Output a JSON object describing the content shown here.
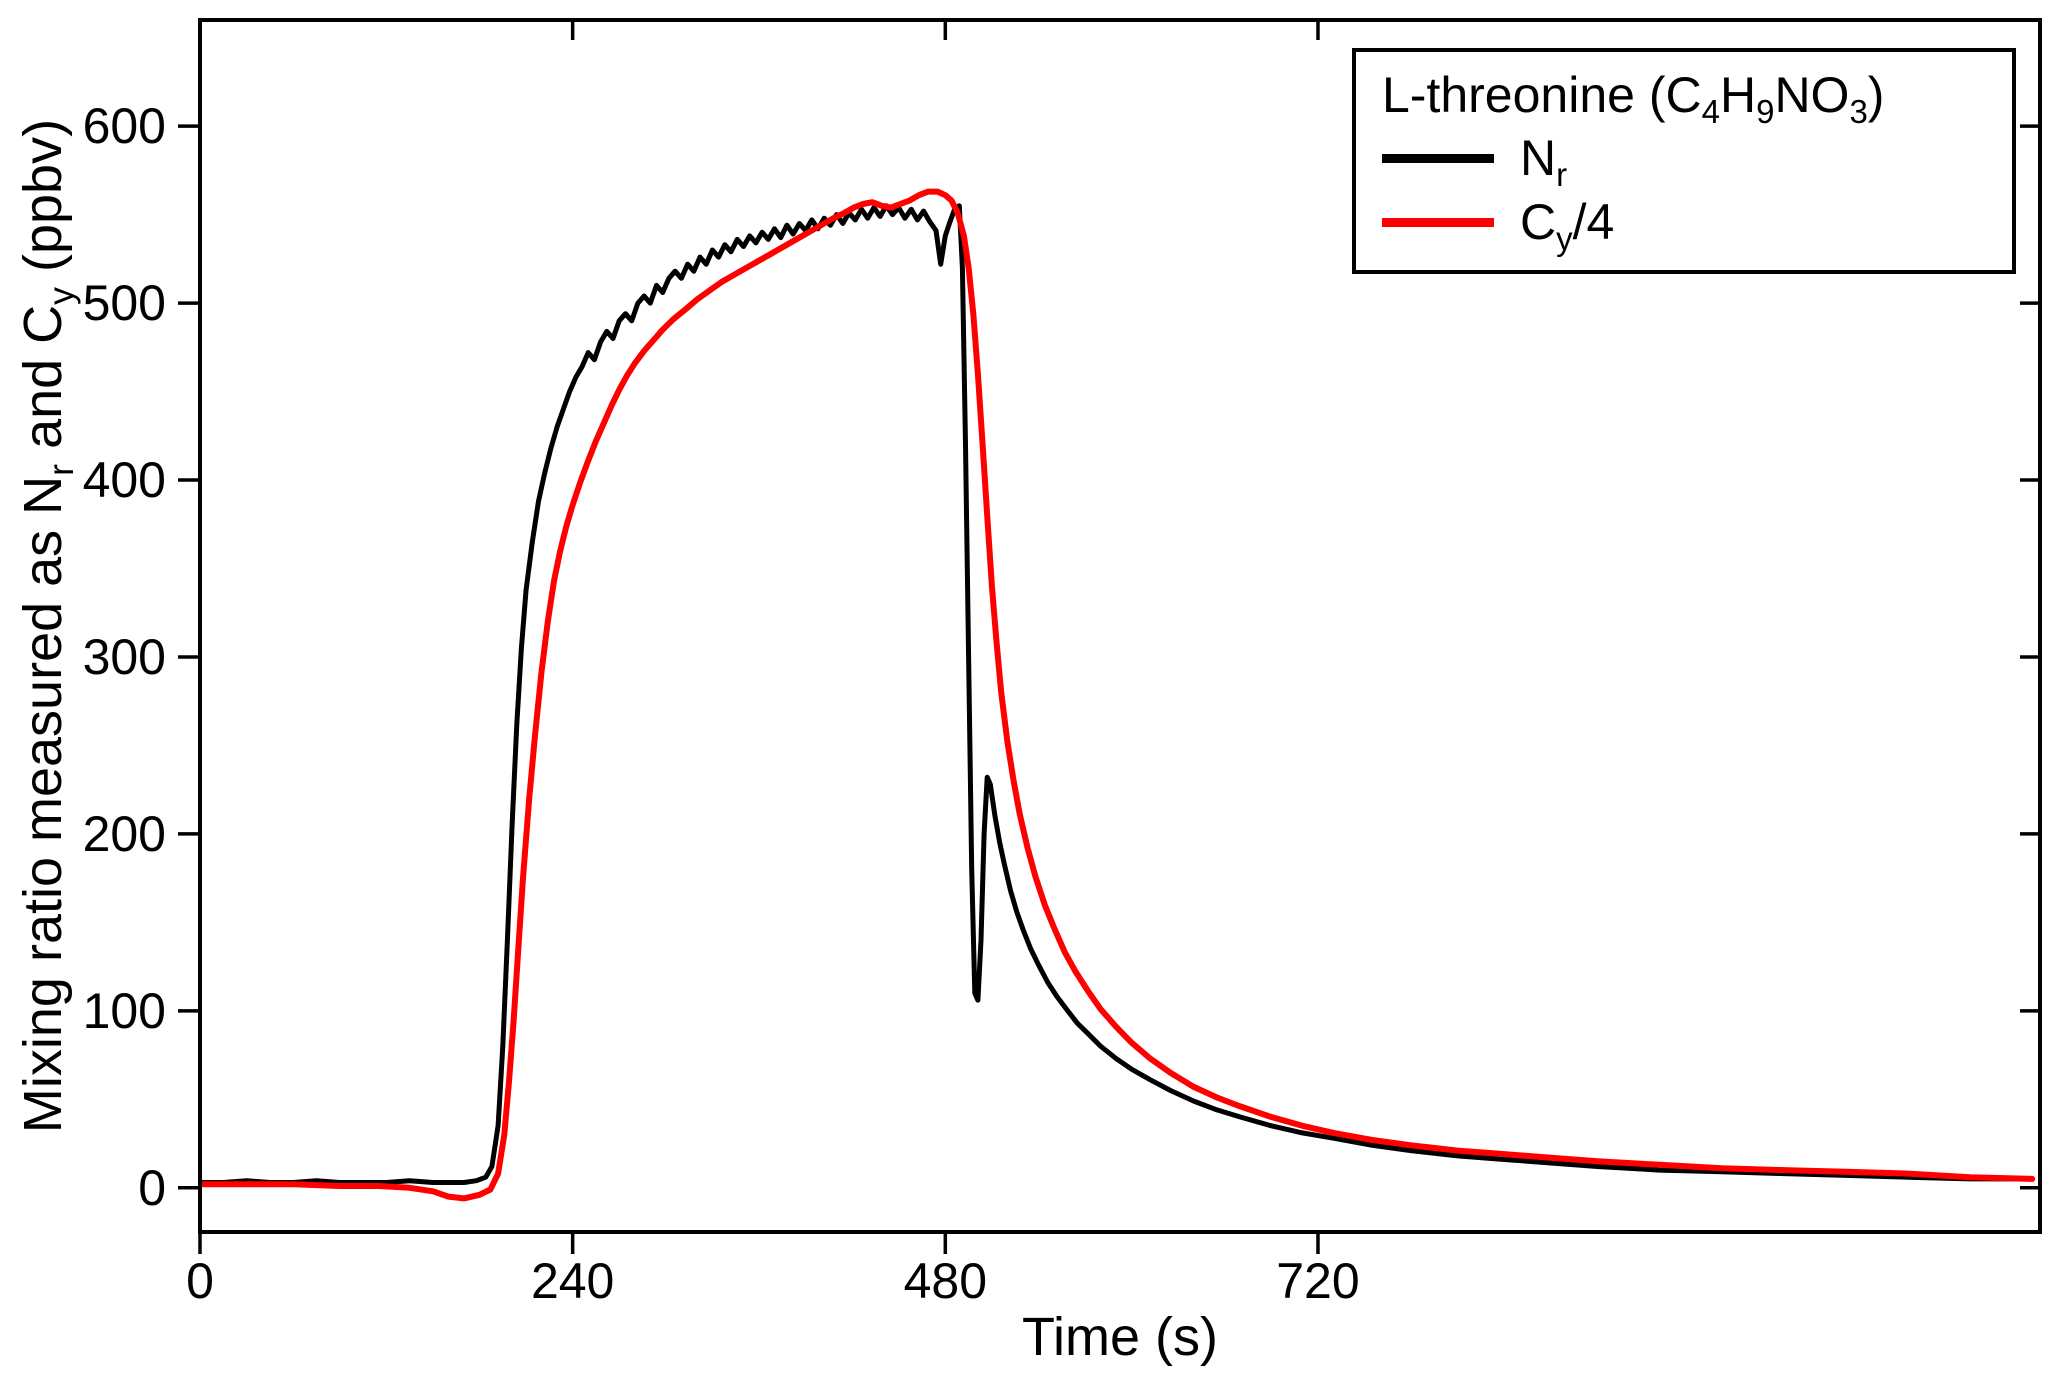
{
  "figure": {
    "background": "#ffffff",
    "frame_color": "#000000"
  },
  "chart_data": {
    "type": "line",
    "title": "",
    "xlabel": "Time (s)",
    "ylabel_parts": [
      {
        "t": "Mixing ratio measured as N"
      },
      {
        "t": "r",
        "sub": true
      },
      {
        "t": " and C"
      },
      {
        "t": "y",
        "sub": true
      },
      {
        "t": " (ppbv)"
      }
    ],
    "xlim": [
      0,
      1185
    ],
    "ylim": [
      -25,
      660
    ],
    "x_ticks": [
      0,
      240,
      480,
      720
    ],
    "y_ticks": [
      0,
      100,
      200,
      300,
      400,
      500,
      600
    ],
    "grid": false,
    "legend": {
      "position": "top-right",
      "border_color": "#000000",
      "title_parts": [
        {
          "t": "L-threonine (C"
        },
        {
          "t": "4",
          "sub": true
        },
        {
          "t": "H"
        },
        {
          "t": "9",
          "sub": true
        },
        {
          "t": "NO"
        },
        {
          "t": "3",
          "sub": true
        },
        {
          "t": ")"
        }
      ]
    },
    "series": [
      {
        "name": "Nr",
        "label_parts": [
          {
            "t": "N"
          },
          {
            "t": "r",
            "sub": true
          }
        ],
        "color": "#000000",
        "width": 5,
        "points": [
          [
            0,
            3
          ],
          [
            15,
            3
          ],
          [
            30,
            4
          ],
          [
            45,
            3
          ],
          [
            60,
            3
          ],
          [
            75,
            4
          ],
          [
            90,
            3
          ],
          [
            105,
            3
          ],
          [
            120,
            3
          ],
          [
            135,
            4
          ],
          [
            150,
            3
          ],
          [
            160,
            3
          ],
          [
            170,
            3
          ],
          [
            178,
            4
          ],
          [
            184,
            6
          ],
          [
            188,
            12
          ],
          [
            192,
            35
          ],
          [
            195,
            80
          ],
          [
            198,
            140
          ],
          [
            201,
            205
          ],
          [
            204,
            262
          ],
          [
            207,
            305
          ],
          [
            210,
            338
          ],
          [
            214,
            365
          ],
          [
            218,
            388
          ],
          [
            222,
            404
          ],
          [
            226,
            418
          ],
          [
            230,
            430
          ],
          [
            234,
            440
          ],
          [
            238,
            450
          ],
          [
            242,
            458
          ],
          [
            246,
            464
          ],
          [
            250,
            472
          ],
          [
            254,
            468
          ],
          [
            258,
            478
          ],
          [
            262,
            484
          ],
          [
            266,
            480
          ],
          [
            270,
            490
          ],
          [
            274,
            494
          ],
          [
            278,
            490
          ],
          [
            282,
            500
          ],
          [
            286,
            504
          ],
          [
            290,
            500
          ],
          [
            294,
            510
          ],
          [
            298,
            506
          ],
          [
            302,
            514
          ],
          [
            306,
            518
          ],
          [
            310,
            514
          ],
          [
            314,
            522
          ],
          [
            318,
            518
          ],
          [
            322,
            526
          ],
          [
            326,
            522
          ],
          [
            330,
            530
          ],
          [
            334,
            526
          ],
          [
            338,
            533
          ],
          [
            342,
            529
          ],
          [
            346,
            536
          ],
          [
            350,
            532
          ],
          [
            354,
            538
          ],
          [
            358,
            534
          ],
          [
            362,
            540
          ],
          [
            366,
            536
          ],
          [
            370,
            542
          ],
          [
            374,
            537
          ],
          [
            378,
            544
          ],
          [
            382,
            539
          ],
          [
            386,
            545
          ],
          [
            390,
            541
          ],
          [
            394,
            547
          ],
          [
            398,
            542
          ],
          [
            402,
            548
          ],
          [
            406,
            544
          ],
          [
            410,
            550
          ],
          [
            414,
            545
          ],
          [
            418,
            551
          ],
          [
            422,
            547
          ],
          [
            426,
            553
          ],
          [
            430,
            548
          ],
          [
            434,
            554
          ],
          [
            438,
            549
          ],
          [
            442,
            555
          ],
          [
            446,
            550
          ],
          [
            450,
            554
          ],
          [
            454,
            548
          ],
          [
            458,
            553
          ],
          [
            462,
            547
          ],
          [
            466,
            552
          ],
          [
            470,
            546
          ],
          [
            474,
            541
          ],
          [
            477,
            522
          ],
          [
            480,
            538
          ],
          [
            483,
            546
          ],
          [
            486,
            553
          ],
          [
            489,
            555
          ],
          [
            491,
            520
          ],
          [
            493,
            420
          ],
          [
            495,
            300
          ],
          [
            497,
            180
          ],
          [
            499,
            110
          ],
          [
            501,
            106
          ],
          [
            503,
            140
          ],
          [
            505,
            200
          ],
          [
            507,
            232
          ],
          [
            509,
            228
          ],
          [
            512,
            210
          ],
          [
            515,
            195
          ],
          [
            518,
            183
          ],
          [
            522,
            168
          ],
          [
            526,
            156
          ],
          [
            530,
            146
          ],
          [
            535,
            135
          ],
          [
            540,
            126
          ],
          [
            546,
            116
          ],
          [
            552,
            108
          ],
          [
            558,
            101
          ],
          [
            565,
            93
          ],
          [
            572,
            87
          ],
          [
            580,
            80
          ],
          [
            590,
            73
          ],
          [
            600,
            67
          ],
          [
            612,
            61
          ],
          [
            625,
            55
          ],
          [
            640,
            49
          ],
          [
            655,
            44
          ],
          [
            670,
            40
          ],
          [
            690,
            35
          ],
          [
            710,
            31
          ],
          [
            730,
            28
          ],
          [
            755,
            24
          ],
          [
            780,
            21
          ],
          [
            810,
            18
          ],
          [
            840,
            16
          ],
          [
            870,
            14
          ],
          [
            900,
            12
          ],
          [
            940,
            10
          ],
          [
            980,
            9
          ],
          [
            1020,
            8
          ],
          [
            1060,
            7
          ],
          [
            1100,
            6
          ],
          [
            1140,
            5
          ],
          [
            1180,
            5
          ]
        ]
      },
      {
        "name": "Cy/4",
        "label_parts": [
          {
            "t": "C"
          },
          {
            "t": "y",
            "sub": true
          },
          {
            "t": "/4"
          }
        ],
        "color": "#ff0000",
        "width": 6,
        "points": [
          [
            0,
            2
          ],
          [
            30,
            2
          ],
          [
            60,
            2
          ],
          [
            90,
            1
          ],
          [
            115,
            1
          ],
          [
            135,
            0
          ],
          [
            150,
            -2
          ],
          [
            160,
            -5
          ],
          [
            170,
            -6
          ],
          [
            180,
            -4
          ],
          [
            187,
            -1
          ],
          [
            192,
            8
          ],
          [
            196,
            30
          ],
          [
            199,
            60
          ],
          [
            202,
            95
          ],
          [
            205,
            135
          ],
          [
            208,
            175
          ],
          [
            212,
            220
          ],
          [
            216,
            258
          ],
          [
            220,
            292
          ],
          [
            224,
            320
          ],
          [
            228,
            343
          ],
          [
            232,
            360
          ],
          [
            236,
            374
          ],
          [
            240,
            386
          ],
          [
            245,
            399
          ],
          [
            250,
            411
          ],
          [
            255,
            422
          ],
          [
            260,
            432
          ],
          [
            265,
            442
          ],
          [
            270,
            451
          ],
          [
            275,
            459
          ],
          [
            280,
            466
          ],
          [
            286,
            473
          ],
          [
            292,
            479
          ],
          [
            298,
            485
          ],
          [
            305,
            491
          ],
          [
            312,
            496
          ],
          [
            320,
            502
          ],
          [
            328,
            507
          ],
          [
            336,
            512
          ],
          [
            344,
            516
          ],
          [
            352,
            520
          ],
          [
            360,
            524
          ],
          [
            368,
            528
          ],
          [
            376,
            532
          ],
          [
            384,
            536
          ],
          [
            392,
            540
          ],
          [
            400,
            544
          ],
          [
            408,
            548
          ],
          [
            415,
            551
          ],
          [
            421,
            554
          ],
          [
            427,
            556
          ],
          [
            433,
            557
          ],
          [
            439,
            555
          ],
          [
            445,
            554
          ],
          [
            451,
            556
          ],
          [
            457,
            558
          ],
          [
            463,
            561
          ],
          [
            469,
            563
          ],
          [
            475,
            563
          ],
          [
            480,
            561
          ],
          [
            484,
            558
          ],
          [
            488,
            551
          ],
          [
            492,
            538
          ],
          [
            495,
            520
          ],
          [
            498,
            494
          ],
          [
            501,
            460
          ],
          [
            504,
            420
          ],
          [
            507,
            380
          ],
          [
            510,
            340
          ],
          [
            513,
            308
          ],
          [
            516,
            280
          ],
          [
            520,
            252
          ],
          [
            524,
            230
          ],
          [
            528,
            211
          ],
          [
            533,
            192
          ],
          [
            538,
            176
          ],
          [
            544,
            160
          ],
          [
            550,
            147
          ],
          [
            557,
            133
          ],
          [
            564,
            122
          ],
          [
            572,
            111
          ],
          [
            580,
            101
          ],
          [
            590,
            91
          ],
          [
            600,
            82
          ],
          [
            612,
            73
          ],
          [
            625,
            65
          ],
          [
            640,
            57
          ],
          [
            655,
            51
          ],
          [
            670,
            46
          ],
          [
            690,
            40
          ],
          [
            710,
            35
          ],
          [
            730,
            31
          ],
          [
            755,
            27
          ],
          [
            780,
            24
          ],
          [
            810,
            21
          ],
          [
            840,
            19
          ],
          [
            870,
            17
          ],
          [
            900,
            15
          ],
          [
            940,
            13
          ],
          [
            980,
            11
          ],
          [
            1020,
            10
          ],
          [
            1060,
            9
          ],
          [
            1100,
            8
          ],
          [
            1140,
            6
          ],
          [
            1180,
            5
          ]
        ]
      }
    ]
  }
}
